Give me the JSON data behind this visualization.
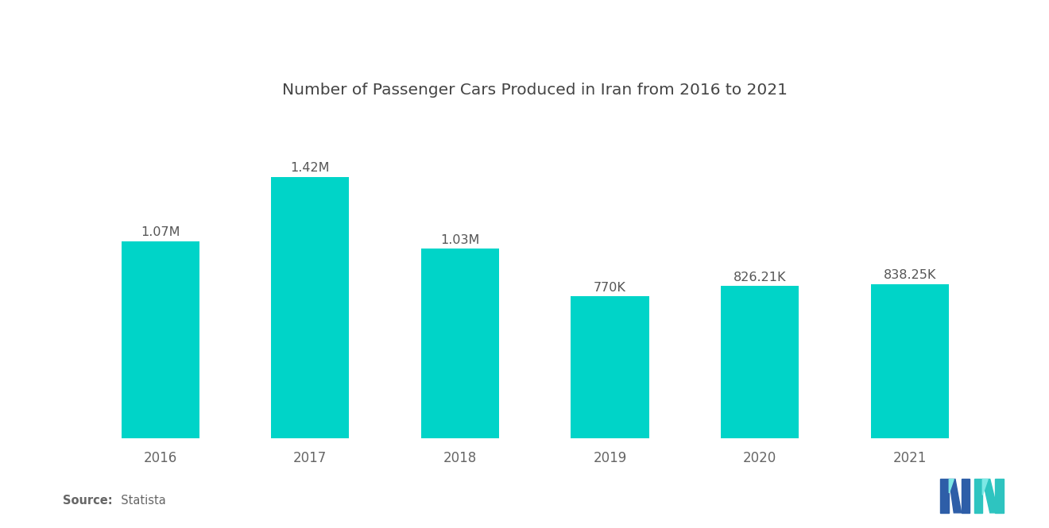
{
  "title": "Number of Passenger Cars Produced in Iran from 2016 to 2021",
  "years": [
    "2016",
    "2017",
    "2018",
    "2019",
    "2020",
    "2021"
  ],
  "values": [
    1070000,
    1420000,
    1030000,
    770000,
    826210,
    838250
  ],
  "labels": [
    "1.07M",
    "1.42M",
    "1.03M",
    "770K",
    "826.21K",
    "838.25K"
  ],
  "bar_color": "#00D4C8",
  "background_color": "#ffffff",
  "title_fontsize": 14.5,
  "label_fontsize": 11.5,
  "tick_fontsize": 12,
  "source_bold": "Source:",
  "source_normal": "  Statista",
  "bar_width": 0.52,
  "ylim_max": 1750000,
  "m_blue": "#2E5EA8",
  "n_teal": "#2EC4C0"
}
